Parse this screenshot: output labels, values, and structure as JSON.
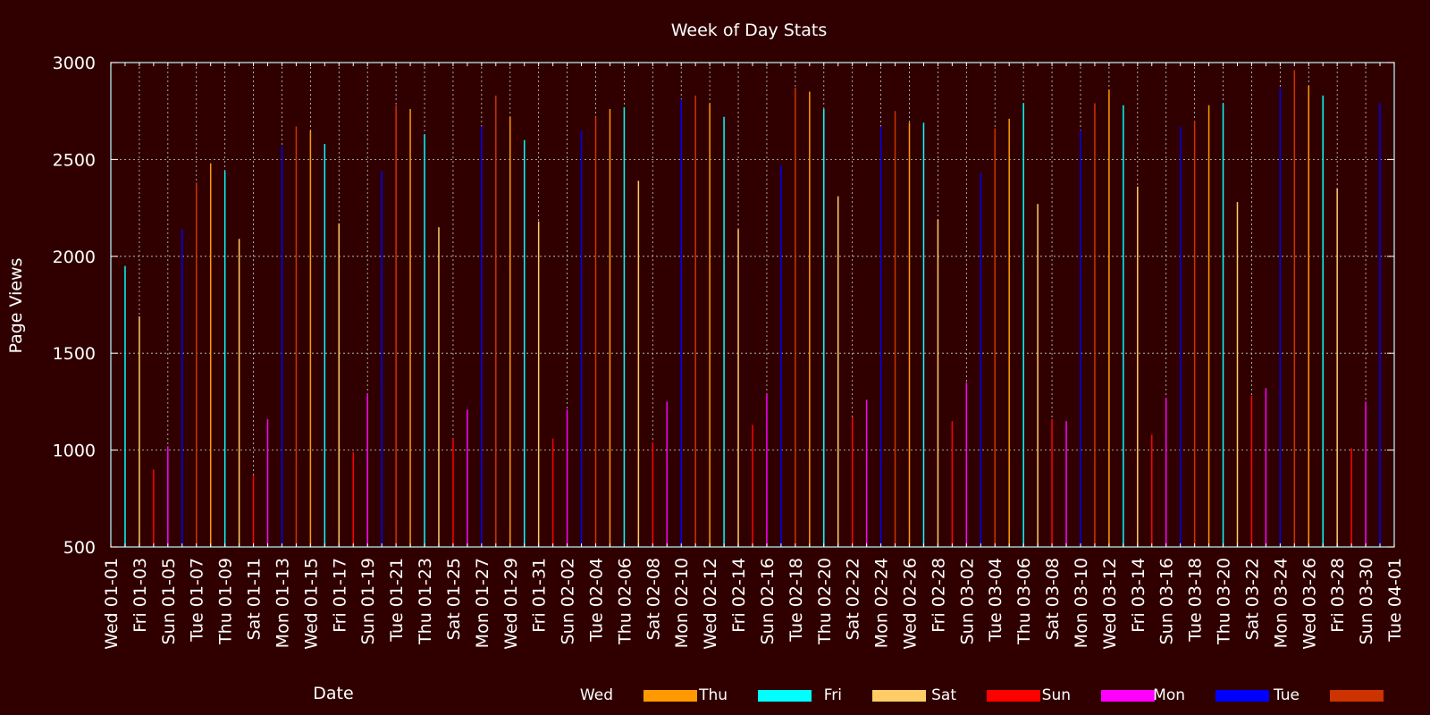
{
  "chart_data": {
    "type": "bar",
    "title": "Week of Day Stats",
    "xlabel": "Date",
    "ylabel": "Page Views",
    "ylim": [
      500,
      3000
    ],
    "yticks": [
      500,
      1000,
      1500,
      2000,
      2500,
      3000
    ],
    "xlim": [
      "01-01",
      "04-01"
    ],
    "x_tick_labels": [
      "Wed 01-01",
      "Fri 01-03",
      "Sun 01-05",
      "Tue 01-07",
      "Thu 01-09",
      "Sat 01-11",
      "Mon 01-13",
      "Wed 01-15",
      "Fri 01-17",
      "Sun 01-19",
      "Tue 01-21",
      "Thu 01-23",
      "Sat 01-25",
      "Mon 01-27",
      "Wed 01-29",
      "Fri 01-31",
      "Sun 02-02",
      "Tue 02-04",
      "Thu 02-06",
      "Sat 02-08",
      "Mon 02-10",
      "Wed 02-12",
      "Fri 02-14",
      "Sun 02-16",
      "Tue 02-18",
      "Thu 02-20",
      "Sat 02-22",
      "Mon 02-24",
      "Wed 02-26",
      "Fri 02-28",
      "Sun 03-02",
      "Tue 03-04",
      "Thu 03-06",
      "Sat 03-08",
      "Mon 03-10",
      "Wed 03-12",
      "Fri 03-14",
      "Sun 03-16",
      "Tue 03-18",
      "Thu 03-20",
      "Sat 03-22",
      "Mon 03-24",
      "Wed 03-26",
      "Fri 03-28",
      "Sun 03-30",
      "Tue 04-01"
    ],
    "grid": true,
    "legend_position": "bottom-right",
    "series": [
      {
        "name": "Wed",
        "color": "#ff9900",
        "points": [
          [
            "01-01",
            null
          ],
          [
            "01-08",
            2480
          ],
          [
            "01-15",
            2650
          ],
          [
            "01-22",
            2760
          ],
          [
            "01-29",
            2720
          ],
          [
            "02-05",
            2760
          ],
          [
            "02-12",
            2790
          ],
          [
            "02-19",
            2850
          ],
          [
            "02-26",
            2690
          ],
          [
            "03-05",
            2710
          ],
          [
            "03-12",
            2860
          ],
          [
            "03-19",
            2780
          ],
          [
            "03-26",
            2880
          ]
        ]
      },
      {
        "name": "Thu",
        "color": "#00ffff",
        "points": [
          [
            "01-02",
            1950
          ],
          [
            "01-09",
            2440
          ],
          [
            "01-16",
            2580
          ],
          [
            "01-23",
            2630
          ],
          [
            "01-30",
            2600
          ],
          [
            "02-06",
            2770
          ],
          [
            "02-13",
            2720
          ],
          [
            "02-20",
            2760
          ],
          [
            "02-27",
            2690
          ],
          [
            "03-06",
            2790
          ],
          [
            "03-13",
            2780
          ],
          [
            "03-20",
            2790
          ],
          [
            "03-27",
            2830
          ]
        ]
      },
      {
        "name": "Fri",
        "color": "#ffcc66",
        "points": [
          [
            "01-03",
            1690
          ],
          [
            "01-10",
            2090
          ],
          [
            "01-17",
            2170
          ],
          [
            "01-24",
            2150
          ],
          [
            "01-31",
            2180
          ],
          [
            "02-07",
            2390
          ],
          [
            "02-14",
            2140
          ],
          [
            "02-21",
            2310
          ],
          [
            "02-28",
            2190
          ],
          [
            "03-07",
            2270
          ],
          [
            "03-14",
            2360
          ],
          [
            "03-21",
            2280
          ],
          [
            "03-28",
            2350
          ]
        ]
      },
      {
        "name": "Sat",
        "color": "#ff0000",
        "points": [
          [
            "01-04",
            900
          ],
          [
            "01-11",
            870
          ],
          [
            "01-18",
            990
          ],
          [
            "01-25",
            1060
          ],
          [
            "02-01",
            1060
          ],
          [
            "02-08",
            1040
          ],
          [
            "02-15",
            1130
          ],
          [
            "02-22",
            1170
          ],
          [
            "03-01",
            1150
          ],
          [
            "03-08",
            1160
          ],
          [
            "03-15",
            1080
          ],
          [
            "03-22",
            1280
          ],
          [
            "03-29",
            1010
          ]
        ]
      },
      {
        "name": "Sun",
        "color": "#ff00ff",
        "points": [
          [
            "01-05",
            1020
          ],
          [
            "01-12",
            1160
          ],
          [
            "01-19",
            1290
          ],
          [
            "01-26",
            1210
          ],
          [
            "02-02",
            1210
          ],
          [
            "02-09",
            1250
          ],
          [
            "02-16",
            1290
          ],
          [
            "02-23",
            1260
          ],
          [
            "03-02",
            1350
          ],
          [
            "03-09",
            1150
          ],
          [
            "03-16",
            1270
          ],
          [
            "03-23",
            1320
          ],
          [
            "03-30",
            1250
          ]
        ]
      },
      {
        "name": "Mon",
        "color": "#0000ff",
        "points": [
          [
            "01-06",
            2140
          ],
          [
            "01-13",
            2570
          ],
          [
            "01-20",
            2440
          ],
          [
            "01-27",
            2670
          ],
          [
            "02-03",
            2650
          ],
          [
            "02-10",
            2810
          ],
          [
            "02-17",
            2470
          ],
          [
            "02-24",
            2670
          ],
          [
            "03-03",
            2430
          ],
          [
            "03-10",
            2650
          ],
          [
            "03-17",
            2670
          ],
          [
            "03-24",
            2870
          ],
          [
            "03-31",
            2790
          ]
        ]
      },
      {
        "name": "Tue",
        "color": "#cc3300",
        "points": [
          [
            "01-07",
            2380
          ],
          [
            "01-14",
            2670
          ],
          [
            "01-21",
            2780
          ],
          [
            "01-28",
            2830
          ],
          [
            "02-04",
            2720
          ],
          [
            "02-11",
            2830
          ],
          [
            "02-18",
            2870
          ],
          [
            "02-25",
            2750
          ],
          [
            "03-04",
            2660
          ],
          [
            "03-11",
            2790
          ],
          [
            "03-18",
            2700
          ],
          [
            "03-25",
            2960
          ],
          [
            "04-01",
            null
          ]
        ]
      }
    ]
  }
}
